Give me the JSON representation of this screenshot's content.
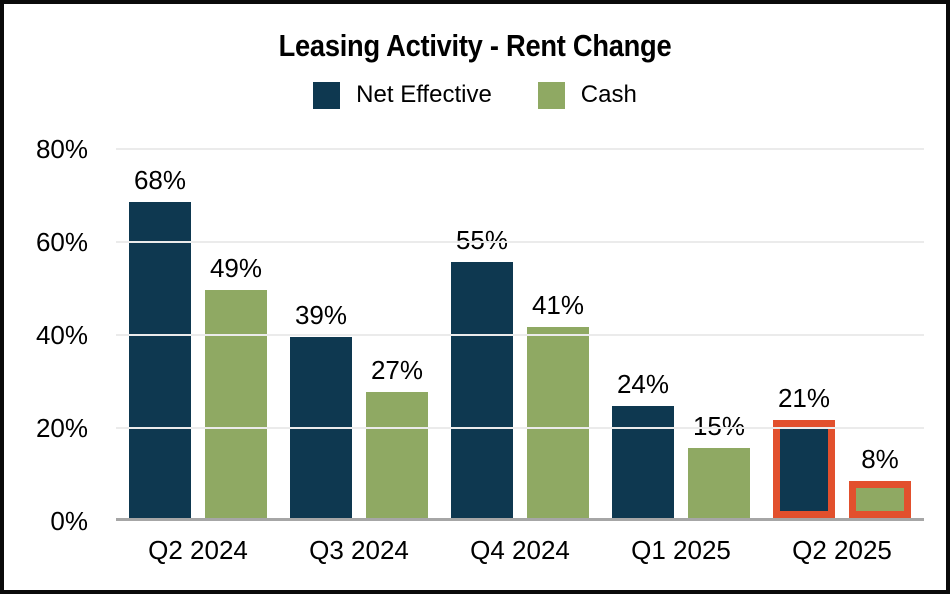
{
  "title": "Leasing Activity - Rent Change",
  "colors": {
    "net_effective": "#0E3850",
    "cash": "#8FA963",
    "highlight_border": "#E2502D",
    "axis_line": "#A6A6A6",
    "gridline": "#EBEBEB",
    "frame_border": "#0A0A0A"
  },
  "chart_data": {
    "type": "bar",
    "title": "Leasing Activity - Rent Change",
    "categories": [
      "Q2 2024",
      "Q3 2024",
      "Q4 2024",
      "Q1 2025",
      "Q2 2025"
    ],
    "series": [
      {
        "name": "Net Effective",
        "color": "#0E3850",
        "values": [
          68,
          39,
          55,
          24,
          21
        ]
      },
      {
        "name": "Cash",
        "color": "#8FA963",
        "values": [
          49,
          27,
          41,
          15,
          8
        ]
      }
    ],
    "data_label_suffix": "%",
    "xlabel": "",
    "ylabel": "",
    "ylim": [
      0,
      80
    ],
    "y_ticks": [
      {
        "label": "0%",
        "value": 0
      },
      {
        "label": "20%",
        "value": 20
      },
      {
        "label": "40%",
        "value": 40
      },
      {
        "label": "60%",
        "value": 60
      },
      {
        "label": "80%",
        "value": 80
      }
    ],
    "grid": true,
    "legend_position": "top",
    "highlight": {
      "category": "Q2 2025",
      "border_color": "#E2502D",
      "border_width": 7
    }
  }
}
